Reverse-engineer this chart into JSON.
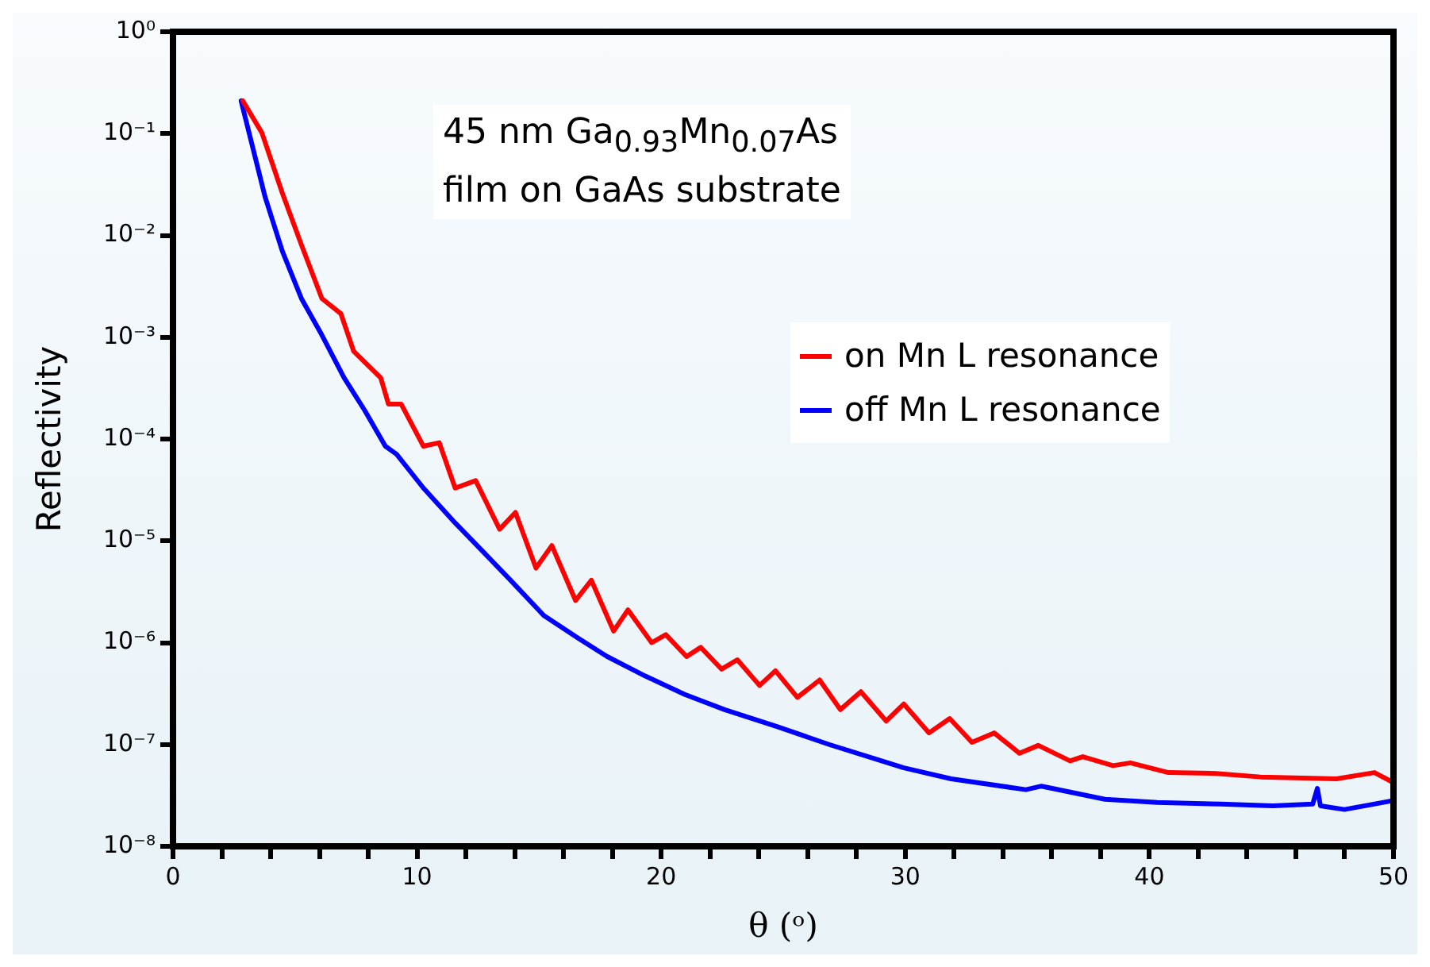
{
  "chart_data": {
    "type": "line",
    "xlabel": "θ (ᵒ)",
    "ylabel": "Reflectivity",
    "log": "y",
    "grid": false,
    "legend": "right",
    "marker": "none",
    "line_style": "solid",
    "annotations": [
      "45 nm Ga$_{0.93}$Mn$_{0.07}$As",
      "film on GaAs substrate"
    ],
    "xlim": [
      0,
      50
    ],
    "xticks": [
      0,
      {
        "value": 2,
        "label": null
      },
      {
        "value": 4,
        "label": null
      },
      {
        "value": 6,
        "label": null
      },
      {
        "value": 8,
        "label": null
      },
      10,
      {
        "value": 12,
        "label": null
      },
      {
        "value": 14,
        "label": null
      },
      {
        "value": 16,
        "label": null
      },
      {
        "value": 18,
        "label": null
      },
      20,
      {
        "value": 22,
        "label": null
      },
      {
        "value": 24,
        "label": null
      },
      {
        "value": 26,
        "label": null
      },
      {
        "value": 28,
        "label": null
      },
      30,
      {
        "value": 32,
        "label": null
      },
      {
        "value": 34,
        "label": null
      },
      {
        "value": 36,
        "label": null
      },
      {
        "value": 38,
        "label": null
      },
      40,
      {
        "value": 42,
        "label": null
      },
      {
        "value": 44,
        "label": null
      },
      {
        "value": 46,
        "label": null
      },
      {
        "value": 48,
        "label": null
      },
      50
    ],
    "ylim": [
      1e-08,
      1
    ],
    "yticks": [
      {
        "value": 1e-08,
        "label": "10⁻⁸"
      },
      {
        "value": 1e-07,
        "label": "10⁻⁷"
      },
      {
        "value": 1e-06,
        "label": "10⁻⁶"
      },
      {
        "value": 1e-05,
        "label": "10⁻⁵"
      },
      {
        "value": 0.0001,
        "label": "10⁻⁴"
      },
      {
        "value": 0.001,
        "label": "10⁻³"
      },
      {
        "value": 0.01,
        "label": "10⁻²"
      },
      {
        "value": 0.1,
        "label": "10⁻¹"
      },
      {
        "value": 1,
        "label": "10⁰"
      }
    ],
    "series": [
      {
        "name": "on Mn L resonance",
        "color": "#ff0000",
        "x": [
          2.86,
          3.64,
          4.48,
          5.26,
          6.1,
          6.88,
          7.4,
          8.51,
          8.83,
          9.35,
          10.26,
          10.91,
          11.56,
          12.4,
          13.38,
          14.03,
          14.87,
          15.52,
          16.49,
          17.14,
          18.05,
          18.64,
          19.61,
          20.19,
          21.04,
          21.62,
          22.47,
          23.12,
          24.03,
          24.68,
          25.58,
          26.49,
          27.34,
          28.18,
          29.22,
          29.94,
          30.97,
          31.82,
          32.73,
          33.64,
          34.68,
          35.45,
          36.75,
          37.27,
          38.51,
          39.22,
          40.78,
          42.73,
          44.55,
          47.66,
          49.22,
          49.94
        ],
        "values": [
          0.21,
          0.102,
          0.026,
          0.0081,
          0.0024,
          0.0017,
          0.00073,
          0.0004,
          0.00022,
          0.00022,
          8.5e-05,
          9.2e-05,
          3.3e-05,
          3.9e-05,
          1.3e-05,
          1.9e-05,
          5.4e-06,
          9e-06,
          2.6e-06,
          4.1e-06,
          1.3e-06,
          2.1e-06,
          1e-06,
          1.2e-06,
          7.3e-07,
          9e-07,
          5.5e-07,
          6.8e-07,
          3.8e-07,
          5.3e-07,
          2.9e-07,
          4.3e-07,
          2.2e-07,
          3.3e-07,
          1.7e-07,
          2.5e-07,
          1.3e-07,
          1.8e-07,
          1.05e-07,
          1.3e-07,
          8.2e-08,
          9.8e-08,
          6.9e-08,
          7.6e-08,
          6.2e-08,
          6.6e-08,
          5.3e-08,
          5.2e-08,
          4.8e-08,
          4.6e-08,
          5.3e-08,
          4.3e-08
        ]
      },
      {
        "name": "off Mn L resonance",
        "color": "#0000ff",
        "x": [
          2.79,
          3.77,
          4.48,
          5.26,
          6.1,
          7.01,
          7.86,
          8.7,
          9.16,
          10.26,
          11.56,
          12.6,
          13.83,
          15.19,
          16.62,
          17.79,
          19.35,
          20.97,
          22.6,
          24.74,
          26.88,
          28.64,
          29.94,
          31.88,
          34.94,
          35.58,
          38.18,
          40.32,
          42.92,
          45.06,
          46.69,
          46.88,
          47.01,
          47.99,
          49.94
        ],
        "values": [
          0.21,
          0.024,
          0.007,
          0.0024,
          0.00105,
          0.0004,
          0.00019,
          8.5e-05,
          7.1e-05,
          3.3e-05,
          1.5e-05,
          8.3e-06,
          4.1e-06,
          1.85e-06,
          1.1e-06,
          7.3e-07,
          4.7e-07,
          3.1e-07,
          2.2e-07,
          1.5e-07,
          1e-07,
          7.4e-08,
          5.9e-08,
          4.6e-08,
          3.6e-08,
          3.9e-08,
          2.9e-08,
          2.7e-08,
          2.6e-08,
          2.5e-08,
          2.6e-08,
          3.7e-08,
          2.5e-08,
          2.3e-08,
          2.8e-08
        ]
      }
    ]
  }
}
